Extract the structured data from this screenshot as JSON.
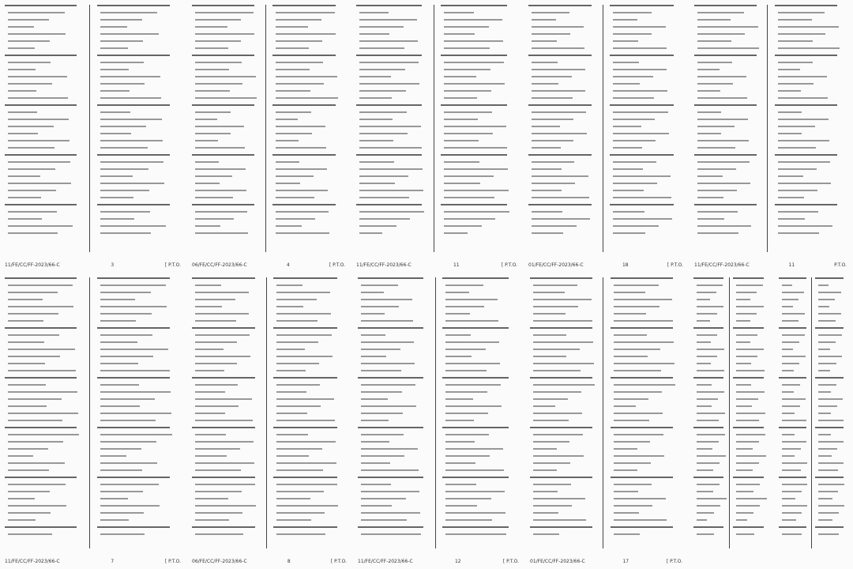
{
  "document": {
    "pages": [
      {
        "code": "11/FE/CC/FF-2023/66-C",
        "number": "3",
        "pto": "[ P.T.O."
      },
      {
        "code": "06/FE/CC/FF-2023/66-C",
        "number": "4",
        "pto": "[ P.T.O."
      },
      {
        "code": "11/FE/CC/FF-2023/66-C",
        "number": "11",
        "pto": "[ P.T.O."
      },
      {
        "code": "01/FE/CC/FF-2023/66-C",
        "number": "18",
        "pto": "[ P.T.O."
      },
      {
        "code": "11/FE/CC/FF-2023/66-C",
        "number": "11",
        "pto": "P.T.O."
      },
      {
        "code": "11/FE/CC/FF-2023/66-C",
        "number": "7",
        "pto": "[ P.T.O."
      },
      {
        "code": "06/FE/CC/FF-2023/66-C",
        "number": "8",
        "pto": "[ P.T.O."
      },
      {
        "code": "11/FE/CC/FF-2023/66-C",
        "number": "12",
        "pto": "[ P.T.O."
      },
      {
        "code": "01/FE/CC/FF-2023/66-C",
        "number": "17",
        "pto": "[ P.T.O."
      },
      {
        "code": "",
        "number": "",
        "pto": ""
      },
      {
        "code": "",
        "number": "",
        "pto": ""
      }
    ]
  }
}
